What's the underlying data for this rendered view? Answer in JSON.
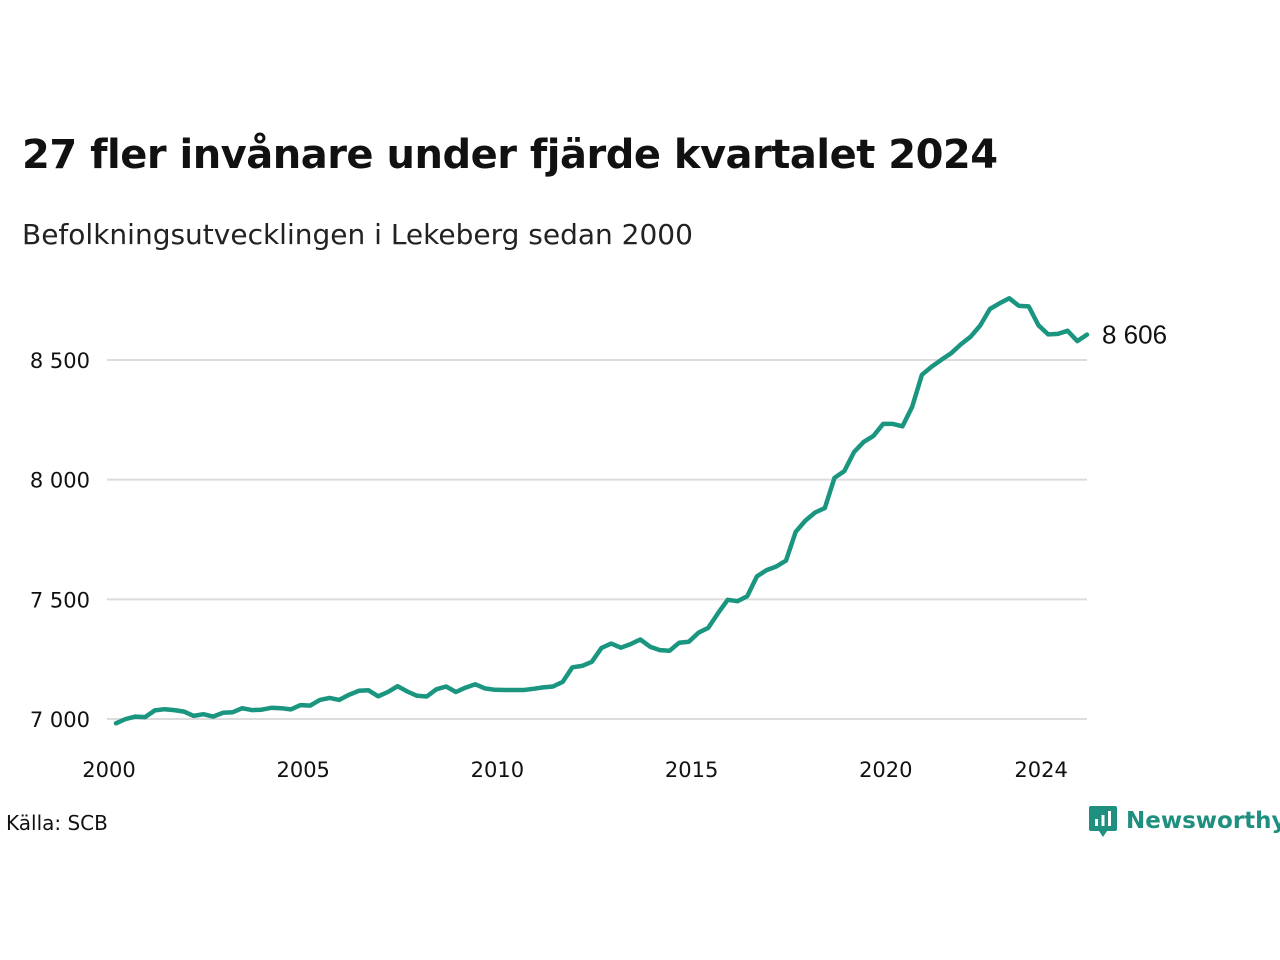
{
  "title": "27 fler invånare under fjärde kvartalet 2024",
  "subtitle": "Befolkningsutvecklingen i Lekeberg sedan 2000",
  "source": "Källa: SCB",
  "brand": {
    "name": "Newsworthy",
    "icon": "newsworthy-logo-icon",
    "color": "#1f8f7f"
  },
  "chart_data": {
    "type": "line",
    "title": "27 fler invånare under fjärde kvartalet 2024",
    "subtitle": "Befolkningsutvecklingen i Lekeberg sedan 2000",
    "xlabel": "",
    "ylabel": "",
    "xlim": [
      2000.0,
      2024.75
    ],
    "ylim": [
      6985,
      8780
    ],
    "x_ticks": [
      {
        "value": 2000,
        "label": "2000"
      },
      {
        "value": 2005,
        "label": "2005"
      },
      {
        "value": 2010,
        "label": "2010"
      },
      {
        "value": 2015,
        "label": "2015"
      },
      {
        "value": 2020,
        "label": "2020"
      },
      {
        "value": 2024,
        "label": "2024"
      }
    ],
    "y_ticks": [
      {
        "value": 7000,
        "label": "7 000"
      },
      {
        "value": 7500,
        "label": "7 500"
      },
      {
        "value": 8000,
        "label": "8 000"
      },
      {
        "value": 8500,
        "label": "8 500"
      }
    ],
    "grid": "horizontal",
    "line_color": "#1a9580",
    "end_label": "8 606",
    "series": [
      {
        "name": "",
        "points": [
          [
            2000.0,
            6982
          ],
          [
            2000.25,
            7000
          ],
          [
            2000.5,
            7010
          ],
          [
            2000.75,
            7008
          ],
          [
            2001.0,
            7036
          ],
          [
            2001.25,
            7041
          ],
          [
            2001.5,
            7037
          ],
          [
            2001.75,
            7031
          ],
          [
            2002.0,
            7013
          ],
          [
            2002.25,
            7020
          ],
          [
            2002.5,
            7010
          ],
          [
            2002.75,
            7026
          ],
          [
            2003.0,
            7028
          ],
          [
            2003.25,
            7045
          ],
          [
            2003.5,
            7037
          ],
          [
            2003.75,
            7039
          ],
          [
            2004.0,
            7047
          ],
          [
            2004.25,
            7045
          ],
          [
            2004.5,
            7040
          ],
          [
            2004.75,
            7058
          ],
          [
            2005.0,
            7056
          ],
          [
            2005.25,
            7080
          ],
          [
            2005.5,
            7088
          ],
          [
            2005.75,
            7080
          ],
          [
            2006.0,
            7101
          ],
          [
            2006.25,
            7118
          ],
          [
            2006.5,
            7120
          ],
          [
            2006.75,
            7095
          ],
          [
            2007.0,
            7113
          ],
          [
            2007.25,
            7137
          ],
          [
            2007.5,
            7115
          ],
          [
            2007.75,
            7097
          ],
          [
            2008.0,
            7094
          ],
          [
            2008.25,
            7124
          ],
          [
            2008.5,
            7136
          ],
          [
            2008.75,
            7113
          ],
          [
            2009.0,
            7131
          ],
          [
            2009.25,
            7145
          ],
          [
            2009.5,
            7128
          ],
          [
            2009.75,
            7122
          ],
          [
            2010.0,
            7121
          ],
          [
            2010.25,
            7121
          ],
          [
            2010.5,
            7121
          ],
          [
            2010.75,
            7126
          ],
          [
            2011.0,
            7132
          ],
          [
            2011.25,
            7136
          ],
          [
            2011.5,
            7155
          ],
          [
            2011.75,
            7216
          ],
          [
            2012.0,
            7222
          ],
          [
            2012.25,
            7239
          ],
          [
            2012.5,
            7297
          ],
          [
            2012.75,
            7315
          ],
          [
            2013.0,
            7298
          ],
          [
            2013.25,
            7313
          ],
          [
            2013.5,
            7332
          ],
          [
            2013.75,
            7302
          ],
          [
            2014.0,
            7288
          ],
          [
            2014.25,
            7285
          ],
          [
            2014.5,
            7319
          ],
          [
            2014.75,
            7323
          ],
          [
            2015.0,
            7361
          ],
          [
            2015.25,
            7381
          ],
          [
            2015.5,
            7442
          ],
          [
            2015.75,
            7498
          ],
          [
            2016.0,
            7492
          ],
          [
            2016.25,
            7513
          ],
          [
            2016.5,
            7596
          ],
          [
            2016.75,
            7622
          ],
          [
            2017.0,
            7637
          ],
          [
            2017.25,
            7662
          ],
          [
            2017.5,
            7782
          ],
          [
            2017.75,
            7829
          ],
          [
            2018.0,
            7863
          ],
          [
            2018.25,
            7881
          ],
          [
            2018.5,
            8008
          ],
          [
            2018.75,
            8036
          ],
          [
            2019.0,
            8115
          ],
          [
            2019.25,
            8158
          ],
          [
            2019.5,
            8183
          ],
          [
            2019.75,
            8233
          ],
          [
            2020.0,
            8233
          ],
          [
            2020.25,
            8223
          ],
          [
            2020.5,
            8305
          ],
          [
            2020.75,
            8438
          ],
          [
            2021.0,
            8472
          ],
          [
            2021.25,
            8501
          ],
          [
            2021.5,
            8528
          ],
          [
            2021.75,
            8565
          ],
          [
            2022.0,
            8597
          ],
          [
            2022.25,
            8644
          ],
          [
            2022.5,
            8713
          ],
          [
            2022.75,
            8737
          ],
          [
            2023.0,
            8758
          ],
          [
            2023.25,
            8726
          ],
          [
            2023.5,
            8724
          ],
          [
            2023.75,
            8645
          ],
          [
            2024.0,
            8607
          ],
          [
            2024.25,
            8609
          ],
          [
            2024.5,
            8622
          ],
          [
            2024.75,
            8579
          ],
          [
            2025.0,
            8606
          ]
        ]
      }
    ]
  }
}
